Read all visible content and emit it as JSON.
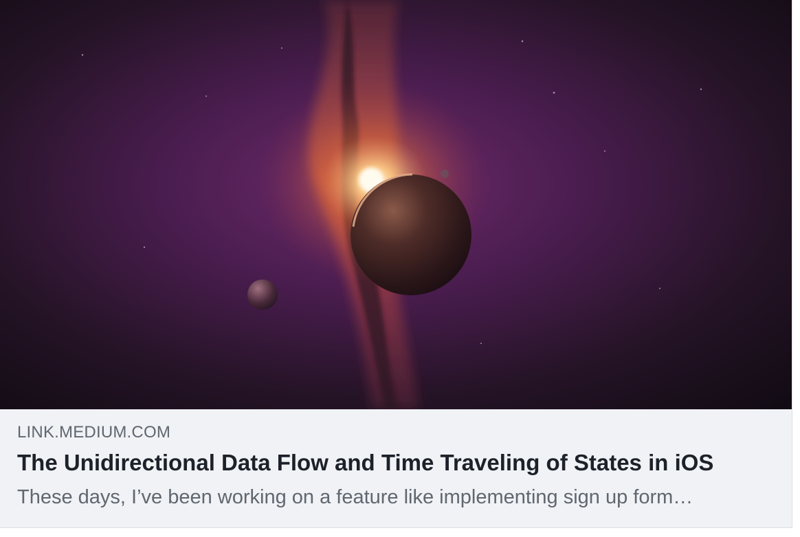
{
  "link_preview": {
    "image_alt": "",
    "domain": "LINK.MEDIUM.COM",
    "title": "The Unidirectional Data Flow and Time Traveling of States in iOS",
    "description": "These days, I’ve been working on a feature like implementing sign up form…",
    "colors": {
      "meta_background": "#f0f2f5",
      "domain_text": "#606770",
      "title_text": "#1d2129",
      "description_text": "#606770"
    }
  }
}
